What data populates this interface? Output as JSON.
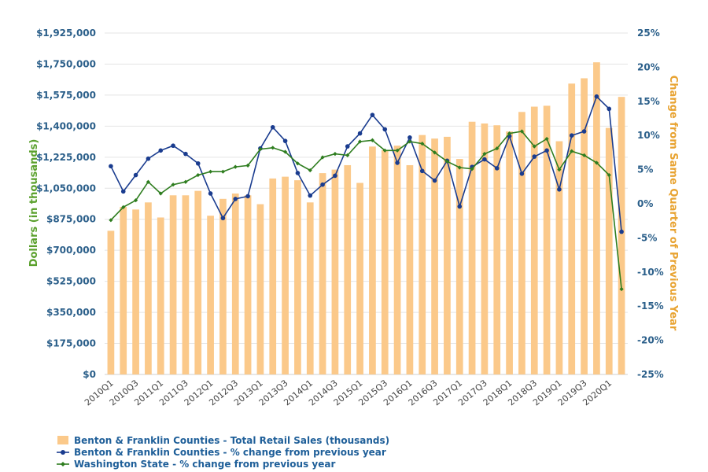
{
  "chart_data": {
    "type": "bar+line",
    "categories": [
      "2010Q1",
      "2010Q2",
      "2010Q3",
      "2010Q4",
      "2011Q1",
      "2011Q2",
      "2011Q3",
      "2011Q4",
      "2012Q1",
      "2012Q2",
      "2012Q3",
      "2012Q4",
      "2013Q1",
      "2013Q2",
      "2013Q3",
      "2013Q4",
      "2014Q1",
      "2014Q2",
      "2014Q3",
      "2014Q4",
      "2015Q1",
      "2015Q2",
      "2015Q3",
      "2015Q4",
      "2016Q1",
      "2016Q2",
      "2016Q3",
      "2016Q4",
      "2017Q1",
      "2017Q2",
      "2017Q3",
      "2017Q4",
      "2018Q1",
      "2018Q2",
      "2018Q3",
      "2018Q4",
      "2019Q1",
      "2019Q2",
      "2019Q3",
      "2019Q4",
      "2020Q1",
      "2020Q2"
    ],
    "x_tick_labels": [
      "2010Q1",
      "2010Q3",
      "2011Q1",
      "2011Q3",
      "2012Q1",
      "2012Q3",
      "2013Q1",
      "2013Q3",
      "2014Q1",
      "2014Q3",
      "2015Q1",
      "2015Q3",
      "2016Q1",
      "2016Q3",
      "2017Q1",
      "2017Q3",
      "2018Q1",
      "2018Q3",
      "2019Q1",
      "2019Q3",
      "2020Q1"
    ],
    "left_axis": {
      "label": "Dollars (in thousands)",
      "ylim": [
        0,
        1925000
      ],
      "ticks": [
        "$0",
        "$175,000",
        "$350,000",
        "$525,000",
        "$700,000",
        "$875,000",
        "$1,050,000",
        "$1,225,000",
        "$1,400,000",
        "$1,575,000",
        "$1,750,000",
        "$1,925,000"
      ]
    },
    "right_axis": {
      "label": "Change from Same Quarter of Previous Year",
      "ylim": [
        -25,
        25
      ],
      "ticks": [
        "-25%",
        "-20%",
        "-15%",
        "-10%",
        "-5%",
        "0%",
        "5%",
        "10%",
        "15%",
        "20%",
        "25%"
      ]
    },
    "grid": true,
    "legend_position": "bottom-left",
    "series": [
      {
        "name": "Benton & Franklin Counties - Total Retail Sales (thousands)",
        "type": "bar",
        "axis": "left",
        "color": "#fbc98a",
        "values": [
          810000,
          945000,
          930000,
          970000,
          885000,
          1010000,
          1010000,
          1035000,
          895000,
          990000,
          1020000,
          1010000,
          960000,
          1105000,
          1115000,
          1095000,
          970000,
          1135000,
          1155000,
          1180000,
          1080000,
          1285000,
          1265000,
          1290000,
          1180000,
          1350000,
          1330000,
          1340000,
          1215000,
          1425000,
          1415000,
          1405000,
          1370000,
          1480000,
          1510000,
          1515000,
          1315000,
          1640000,
          1670000,
          1760000,
          1390000,
          1565000
        ]
      },
      {
        "name": "Benton & Franklin Counties - % change from previous year",
        "type": "line",
        "axis": "right",
        "color": "#1a3c8f",
        "values": [
          5.5,
          1.8,
          4.2,
          6.6,
          7.8,
          8.5,
          7.3,
          5.9,
          1.5,
          -2.1,
          0.7,
          1.1,
          8.1,
          11.2,
          9.2,
          4.5,
          1.2,
          2.8,
          4.1,
          8.4,
          10.3,
          13.0,
          10.9,
          6.0,
          9.7,
          4.8,
          3.4,
          6.3,
          -0.4,
          5.4,
          6.5,
          5.2,
          9.9,
          4.4,
          6.9,
          7.8,
          2.1,
          10.0,
          10.6,
          15.7,
          13.9,
          -4.1
        ]
      },
      {
        "name": "Washington State - % change from previous year",
        "type": "line",
        "axis": "right",
        "color": "#2e7d1f",
        "values": [
          -2.4,
          -0.5,
          0.5,
          3.2,
          1.5,
          2.8,
          3.2,
          4.2,
          4.7,
          4.7,
          5.4,
          5.6,
          8.0,
          8.2,
          7.6,
          5.9,
          4.9,
          6.8,
          7.3,
          7.1,
          9.1,
          9.3,
          7.8,
          7.8,
          9.1,
          8.8,
          7.5,
          6.2,
          5.3,
          5.1,
          7.3,
          8.1,
          10.3,
          10.6,
          8.4,
          9.5,
          5.0,
          7.7,
          7.1,
          6.0,
          4.2,
          -12.5
        ]
      }
    ]
  }
}
